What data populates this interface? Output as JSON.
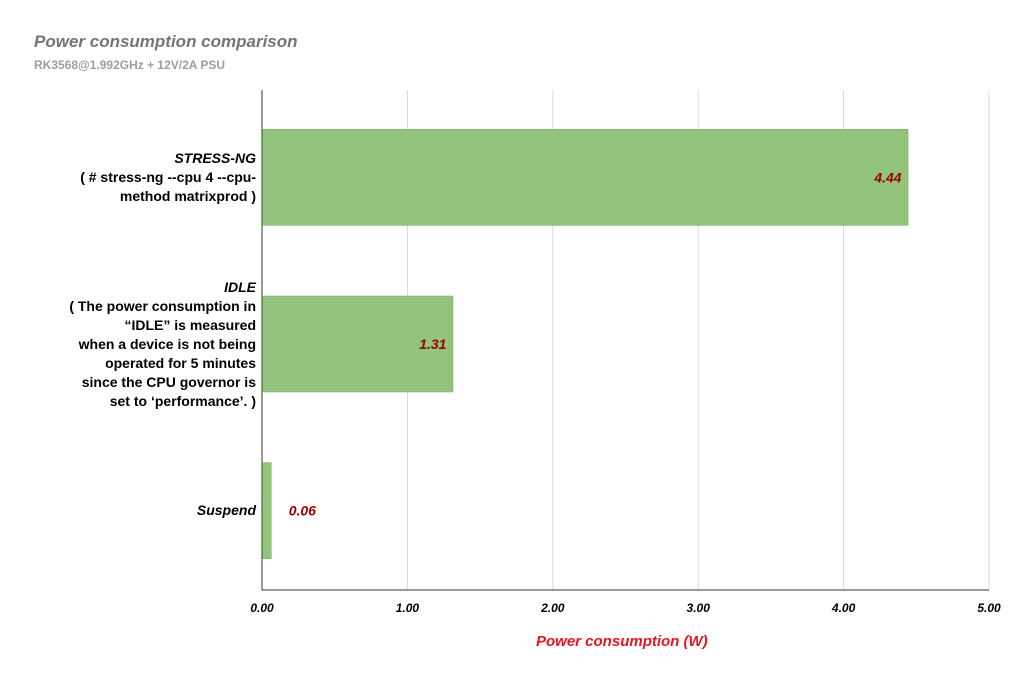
{
  "chart_data": {
    "type": "bar",
    "orientation": "horizontal",
    "title": "Power consumption comparison",
    "subtitle": "RK3568@1.992GHz + 12V/2A PSU",
    "xlabel": "Power consumption (W)",
    "ylabel": "",
    "xlim": [
      0,
      5
    ],
    "x_ticks": [
      "0.00",
      "1.00",
      "2.00",
      "3.00",
      "4.00",
      "5.00"
    ],
    "grid": true,
    "categories": [
      {
        "name": "STRESS-NG",
        "detail": [
          "( # stress-ng --cpu 4 --cpu-",
          "method matrixprod )"
        ]
      },
      {
        "name": "IDLE",
        "detail": [
          "( The power consumption in",
          "“IDLE” is measured",
          "when a device is not being",
          "operated for 5 minutes",
          "since the CPU governor is",
          "set to ‘performance’. )"
        ]
      },
      {
        "name": "Suspend",
        "detail": []
      }
    ],
    "values": [
      4.44,
      1.31,
      0.06
    ],
    "data_labels": [
      "4.44",
      "1.31",
      "0.06"
    ],
    "colors": {
      "bar": "#93c47d",
      "bar_stroke": "#6aa84f",
      "data_label": "#990000",
      "grid": "#d9d9d9",
      "axis": "#333333",
      "xlabel": "#e8141f"
    }
  }
}
